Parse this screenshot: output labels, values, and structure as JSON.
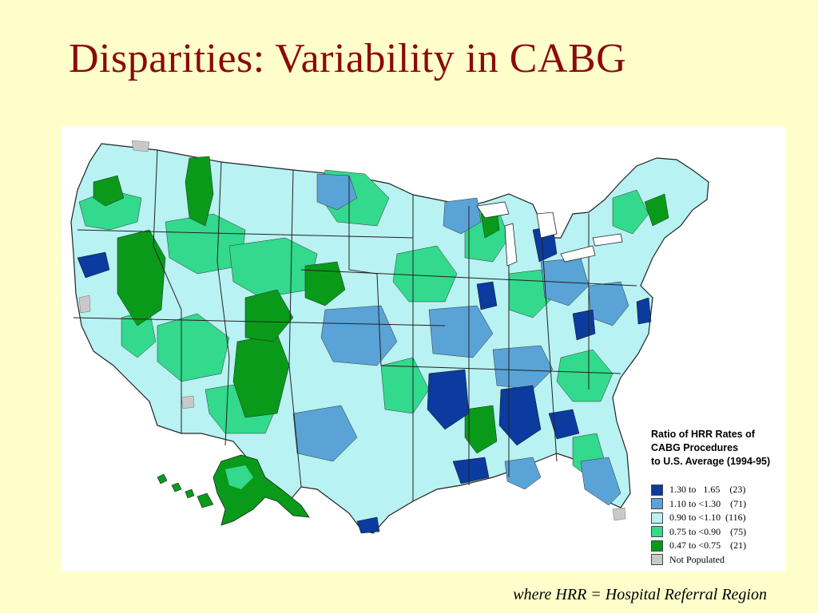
{
  "slide": {
    "title": "Disparities: Variability in CABG",
    "footnote": "where HRR = Hospital Referral Region"
  },
  "legend": {
    "title": "Ratio of HRR Rates of\nCABG Procedures\n to U.S. Average (1994-95)",
    "items": [
      {
        "label": "1.30 to   1.65    (23)",
        "color": "#0B3B9E"
      },
      {
        "label": "1.10 to <1.30    (71)",
        "color": "#5AA3D6"
      },
      {
        "label": "0.90 to <1.10  (116)",
        "color": "#B8F2F2"
      },
      {
        "label": "0.75 to <0.90    (75)",
        "color": "#33D98C"
      },
      {
        "label": "0.47 to <0.75    (21)",
        "color": "#0A9A1A"
      },
      {
        "label": "Not Populated",
        "color": "#C9C9C9"
      }
    ]
  },
  "map": {
    "colors": {
      "dark_blue": "#0B3B9E",
      "medium_blue": "#5AA3D6",
      "light_cyan": "#B8F2F2",
      "medium_green": "#33D98C",
      "dark_green": "#0A9A1A",
      "not_populated": "#C9C9C9"
    }
  }
}
